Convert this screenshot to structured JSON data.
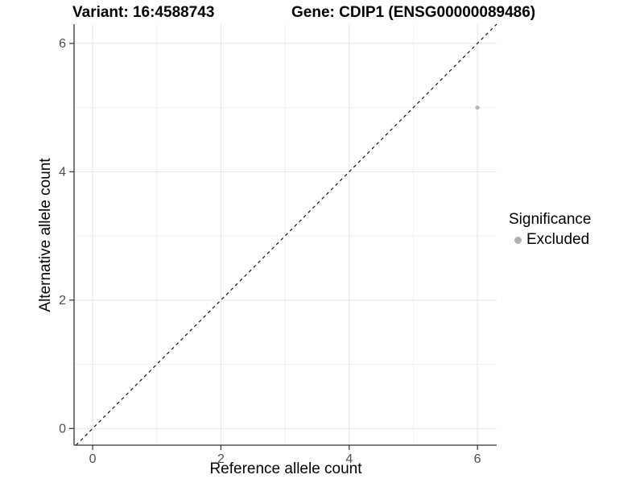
{
  "header": {
    "variant_title": "Variant: 16:4588743",
    "gene_title": "Gene: CDIP1 (ENSG00000089486)"
  },
  "chart_data": {
    "type": "scatter",
    "title_left": "Variant: 16:4588743",
    "title_right": "Gene: CDIP1 (ENSG00000089486)",
    "xlabel": "Reference allele count",
    "ylabel": "Alternative allele count",
    "xlim": [
      -0.29,
      6.3
    ],
    "ylim": [
      -0.26,
      6.3
    ],
    "xticks": [
      0,
      2,
      4,
      6
    ],
    "yticks": [
      0,
      2,
      4,
      6
    ],
    "minor_gridlines": [
      1,
      3,
      5
    ],
    "grid": true,
    "legend_position": "right",
    "abline": {
      "slope": 1,
      "intercept": 0,
      "linetype": "dashed",
      "color": "#000000"
    },
    "series": [
      {
        "name": "Excluded",
        "color": "#b4b4b4",
        "points": [
          {
            "x": 6,
            "y": 5
          }
        ]
      }
    ],
    "legend": {
      "title": "Significance",
      "items": [
        {
          "label": "Excluded",
          "color": "#b0b0b0"
        }
      ]
    }
  },
  "colors": {
    "background": "#ffffff",
    "axis_line": "#333333",
    "tick_label": "#4d4d4d",
    "major_grid": "#e3e3e3",
    "minor_grid": "#f0f0f0",
    "point": "#b4b4b4"
  }
}
